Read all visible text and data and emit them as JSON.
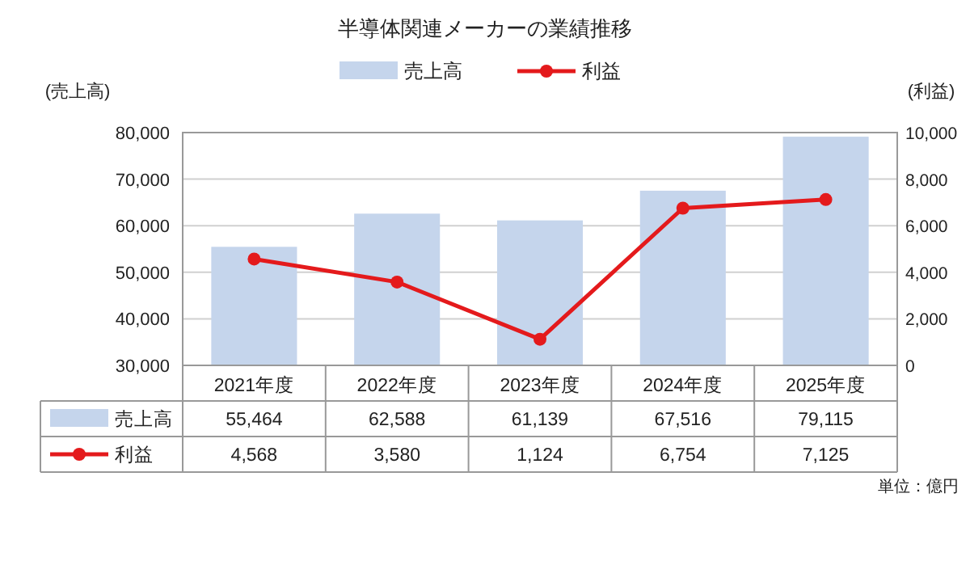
{
  "chart_data": {
    "type": "bar",
    "title": "半導体関連メーカーの業績推移",
    "ylabel": "(売上高)",
    "y2label": "(利益)",
    "categories": [
      "2021年度",
      "2022年度",
      "2023年度",
      "2024年度",
      "2025年度"
    ],
    "series": [
      {
        "name": "売上高",
        "color": "#c5d5ec",
        "values": [
          55464,
          62588,
          61139,
          67516,
          79115
        ],
        "value_labels": [
          "55,464",
          "62,588",
          "61,139",
          "67,516",
          "79,115"
        ]
      },
      {
        "name": "利益",
        "type": "line",
        "axis": "y2",
        "color": "#e41a1c",
        "marker": "circle",
        "values": [
          4568,
          3580,
          1124,
          6754,
          7125
        ],
        "value_labels": [
          "4,568",
          "3,580",
          "1,124",
          "6,754",
          "7,125"
        ]
      }
    ],
    "ylim": [
      30000,
      80000
    ],
    "yticks": [
      {
        "value": 30000,
        "label": "30,000"
      },
      {
        "value": 40000,
        "label": "40,000"
      },
      {
        "value": 50000,
        "label": "50,000"
      },
      {
        "value": 60000,
        "label": "60,000"
      },
      {
        "value": 70000,
        "label": "70,000"
      },
      {
        "value": 80000,
        "label": "80,000"
      }
    ],
    "y2lim": [
      0,
      10000
    ],
    "y2ticks": [
      0,
      {
        "value": 2000,
        "label": "2,000"
      },
      {
        "value": 4000,
        "label": "4,000"
      },
      {
        "value": 6000,
        "label": "6,000"
      },
      {
        "value": 8000,
        "label": "8,000"
      },
      {
        "value": 10000,
        "label": "10,000"
      }
    ],
    "grid": "y",
    "legend": "top",
    "annotations": [
      "単位：億円"
    ]
  }
}
